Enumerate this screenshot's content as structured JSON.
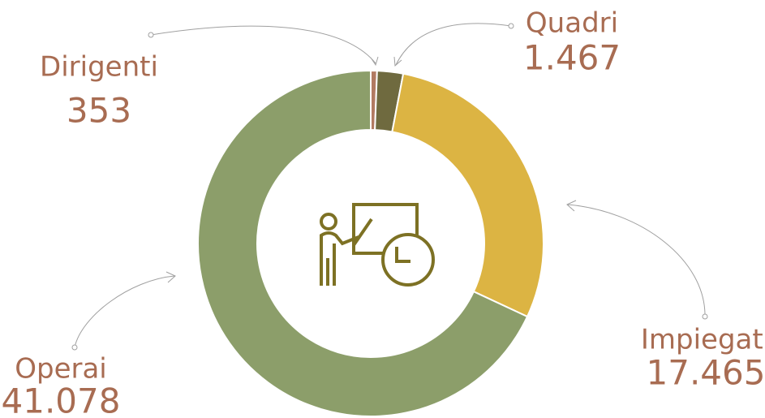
{
  "chart_data": {
    "type": "pie",
    "categories": [
      "Dirigenti",
      "Quadri",
      "Impiegati",
      "Operai"
    ],
    "values": [
      353,
      1467,
      17465,
      41078
    ],
    "value_labels": [
      "353",
      "1.467",
      "17.465",
      "41.078"
    ],
    "colors": [
      "#b27a62",
      "#6f6a3f",
      "#dcb443",
      "#8c9e6a"
    ]
  }
}
